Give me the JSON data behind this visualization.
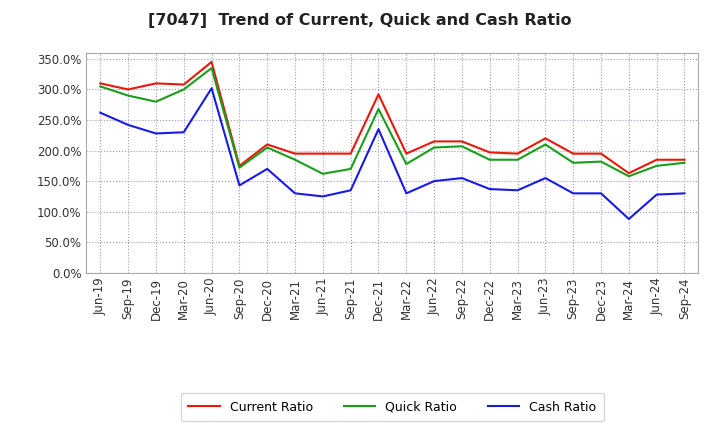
{
  "title": "[7047]  Trend of Current, Quick and Cash Ratio",
  "x_labels": [
    "Jun-19",
    "Sep-19",
    "Dec-19",
    "Mar-20",
    "Jun-20",
    "Sep-20",
    "Dec-20",
    "Mar-21",
    "Jun-21",
    "Sep-21",
    "Dec-21",
    "Mar-22",
    "Jun-22",
    "Sep-22",
    "Dec-22",
    "Mar-23",
    "Jun-23",
    "Sep-23",
    "Dec-23",
    "Mar-24",
    "Jun-24",
    "Sep-24"
  ],
  "current_ratio": [
    310,
    300,
    310,
    308,
    345,
    175,
    210,
    195,
    195,
    195,
    292,
    195,
    215,
    215,
    197,
    195,
    220,
    195,
    195,
    163,
    185,
    185
  ],
  "quick_ratio": [
    305,
    290,
    280,
    300,
    335,
    172,
    205,
    185,
    162,
    170,
    268,
    178,
    205,
    207,
    185,
    185,
    210,
    180,
    182,
    158,
    175,
    180
  ],
  "cash_ratio": [
    262,
    242,
    228,
    230,
    302,
    143,
    170,
    130,
    125,
    135,
    235,
    130,
    150,
    155,
    137,
    135,
    155,
    130,
    130,
    88,
    128,
    130
  ],
  "ylim": [
    0,
    360
  ],
  "yticks": [
    0,
    50,
    100,
    150,
    200,
    250,
    300,
    350
  ],
  "current_color": "#e8190a",
  "quick_color": "#1a9e1a",
  "cash_color": "#1a1ae8",
  "bg_color": "#ffffff",
  "grid_color": "#9999bb",
  "legend_labels": [
    "Current Ratio",
    "Quick Ratio",
    "Cash Ratio"
  ]
}
